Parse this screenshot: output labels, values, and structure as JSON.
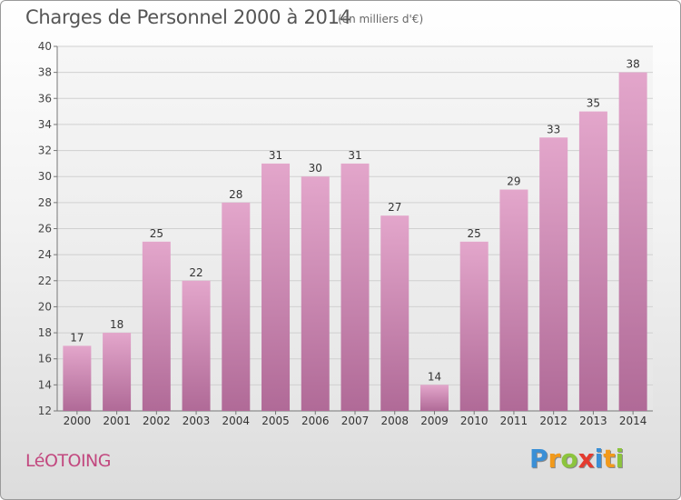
{
  "chart_data": {
    "type": "bar",
    "title": "Charges de Personnel 2000 à 2014",
    "subtitle": "(en milliers d'€)",
    "categories": [
      "2000",
      "2001",
      "2002",
      "2003",
      "2004",
      "2005",
      "2006",
      "2007",
      "2008",
      "2009",
      "2010",
      "2011",
      "2012",
      "2013",
      "2014"
    ],
    "values": [
      17,
      18,
      25,
      22,
      28,
      31,
      30,
      31,
      27,
      14,
      25,
      29,
      33,
      35,
      38
    ],
    "ylim": [
      12,
      40
    ],
    "yticks": [
      12,
      14,
      16,
      18,
      20,
      22,
      24,
      26,
      28,
      30,
      32,
      34,
      36,
      38,
      40
    ],
    "grid": true,
    "bar_color": "#d98bb8"
  },
  "footer": {
    "place": "LéOTOING",
    "logo": {
      "letters": [
        "P",
        "r",
        "o",
        "x",
        "i",
        "t",
        "i"
      ],
      "colors": [
        "#3a8fd6",
        "#f29a1b",
        "#8cc43d",
        "#e43b2f",
        "#3a8fd6",
        "#f29a1b",
        "#8cc43d"
      ]
    }
  }
}
